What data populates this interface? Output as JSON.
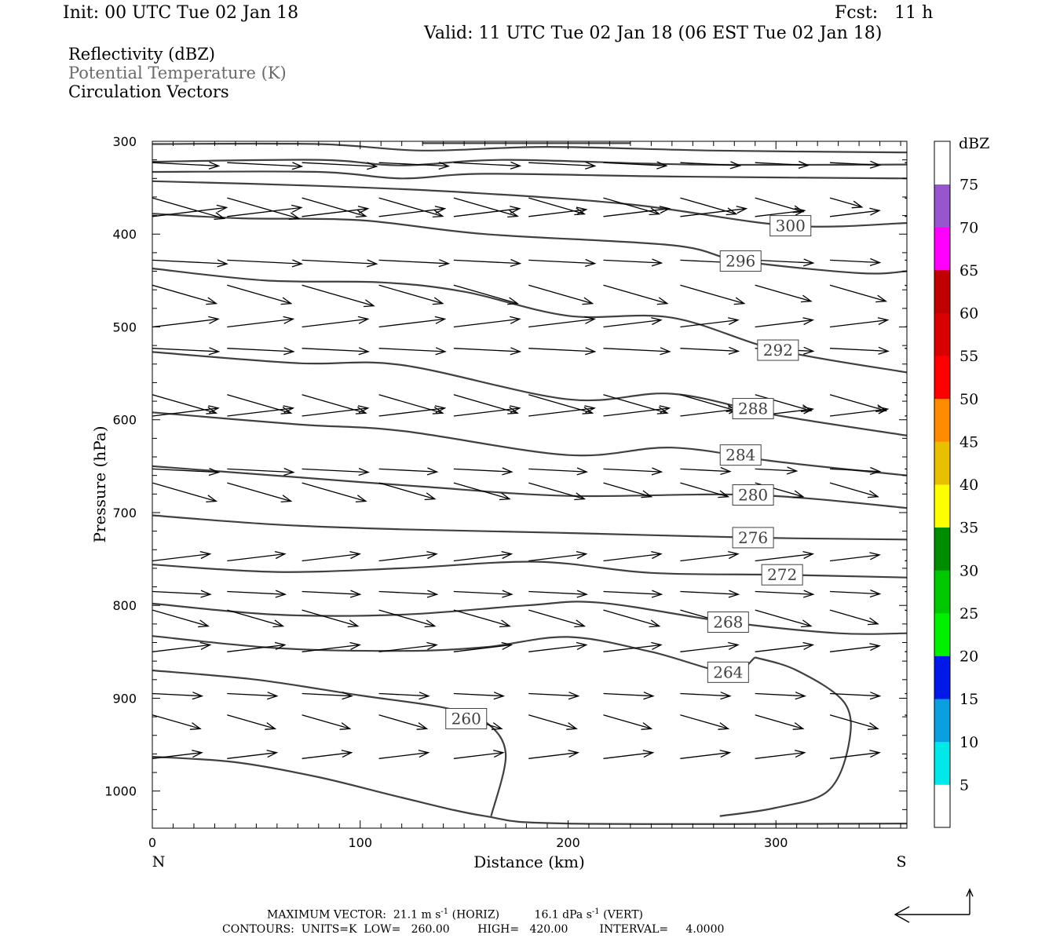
{
  "header": {
    "init": "Init: 00 UTC Tue 02 Jan 18",
    "fcst": "Fcst:   11 h",
    "valid": "Valid: 11 UTC Tue 02 Jan 18 (06 EST Tue 02 Jan 18)"
  },
  "fields": [
    "Reflectivity (dBZ)",
    "Potential Temperature (K)",
    "Circulation Vectors"
  ],
  "footer": {
    "max_vector_prefix": "MAXIMUM VECTOR:  21.1 m s",
    "horiz_suffix": " (HORIZ)",
    "vert_value": "16.1 dPa s",
    "vert_suffix": " (VERT)",
    "exponent": "-1",
    "contours": "CONTOURS:  UNITS=K  LOW=   260.00        HIGH=   420.00         INTERVAL=     4.0000"
  },
  "chart_data": {
    "type": "line",
    "title": "",
    "xlabel": "Distance (km)",
    "ylabel": "Pressure (hPa)",
    "xlim": [
      0,
      363
    ],
    "ylim": [
      1040,
      300
    ],
    "x_ticks": [
      0,
      100,
      200,
      300
    ],
    "y_ticks": [
      300,
      400,
      500,
      600,
      700,
      800,
      900,
      1000
    ],
    "x_end_labels": {
      "left": "N",
      "right": "S"
    },
    "colorbar": {
      "title": "dBZ",
      "labels": [
        "5",
        "10",
        "15",
        "20",
        "25",
        "30",
        "35",
        "40",
        "45",
        "50",
        "55",
        "60",
        "65",
        "70",
        "75"
      ],
      "colors": [
        "#ffffff",
        "#00e8e8",
        "#0aa0e0",
        "#0018e8",
        "#00f000",
        "#00c800",
        "#008c00",
        "#ffff00",
        "#e8c000",
        "#ff8c00",
        "#ff0000",
        "#d80000",
        "#c00000",
        "#ff00ff",
        "#9955cc",
        "#ffffff"
      ]
    },
    "series": [
      {
        "level": "260",
        "label_at": {
          "x": 151,
          "p": 922
        },
        "points": [
          [
            0,
            870
          ],
          [
            50,
            880
          ],
          [
            100,
            897
          ],
          [
            140,
            910
          ],
          [
            160,
            925
          ],
          [
            170,
            960
          ],
          [
            163,
            1027
          ]
        ]
      },
      {
        "level": "260",
        "points": [
          [
            273,
            1027
          ],
          [
            300,
            1018
          ],
          [
            325,
            1000
          ],
          [
            335,
            950
          ],
          [
            333,
            905
          ],
          [
            310,
            870
          ],
          [
            290,
            856
          ]
        ]
      },
      {
        "level": "264",
        "label_at": {
          "x": 277,
          "p": 872
        },
        "points": [
          [
            0,
            833
          ],
          [
            60,
            846
          ],
          [
            120,
            849
          ],
          [
            160,
            845
          ],
          [
            200,
            834
          ],
          [
            240,
            850
          ],
          [
            277,
            872
          ],
          [
            290,
            856
          ]
        ]
      },
      {
        "level": "268",
        "label_at": {
          "x": 277,
          "p": 818
        },
        "points": [
          [
            0,
            798
          ],
          [
            60,
            810
          ],
          [
            120,
            810
          ],
          [
            180,
            800
          ],
          [
            215,
            797
          ],
          [
            277,
            818
          ],
          [
            330,
            830
          ],
          [
            363,
            830
          ]
        ]
      },
      {
        "level": "272",
        "label_at": {
          "x": 303,
          "p": 767
        },
        "points": [
          [
            0,
            756
          ],
          [
            60,
            764
          ],
          [
            120,
            760
          ],
          [
            185,
            753
          ],
          [
            240,
            765
          ],
          [
            303,
            767
          ],
          [
            363,
            770
          ]
        ]
      },
      {
        "level": "276",
        "label_at": {
          "x": 289,
          "p": 727
        },
        "points": [
          [
            0,
            703
          ],
          [
            60,
            713
          ],
          [
            120,
            718
          ],
          [
            200,
            722
          ],
          [
            289,
            727
          ],
          [
            363,
            729
          ]
        ]
      },
      {
        "level": "280",
        "label_at": {
          "x": 289,
          "p": 681
        },
        "points": [
          [
            0,
            650
          ],
          [
            70,
            662
          ],
          [
            130,
            672
          ],
          [
            200,
            682
          ],
          [
            289,
            681
          ],
          [
            363,
            695
          ]
        ]
      },
      {
        "level": "284",
        "label_at": {
          "x": 283,
          "p": 638
        },
        "points": [
          [
            0,
            592
          ],
          [
            70,
            605
          ],
          [
            120,
            612
          ],
          [
            200,
            638
          ],
          [
            250,
            630
          ],
          [
            300,
            645
          ],
          [
            363,
            660
          ]
        ]
      },
      {
        "level": "288",
        "label_at": {
          "x": 289,
          "p": 588
        },
        "points": [
          [
            0,
            527
          ],
          [
            70,
            539
          ],
          [
            120,
            541
          ],
          [
            200,
            578
          ],
          [
            250,
            572
          ],
          [
            300,
            595
          ],
          [
            363,
            617
          ]
        ]
      },
      {
        "level": "292",
        "label_at": {
          "x": 301,
          "p": 525
        },
        "points": [
          [
            0,
            437
          ],
          [
            55,
            450
          ],
          [
            110,
            452
          ],
          [
            150,
            462
          ],
          [
            200,
            488
          ],
          [
            250,
            490
          ],
          [
            301,
            525
          ],
          [
            363,
            549
          ]
        ]
      },
      {
        "level": "296",
        "label_at": {
          "x": 283,
          "p": 429
        },
        "points": [
          [
            0,
            378
          ],
          [
            43,
            383
          ],
          [
            100,
            385
          ],
          [
            160,
            400
          ],
          [
            250,
            412
          ],
          [
            283,
            429
          ],
          [
            340,
            442
          ],
          [
            363,
            440
          ]
        ]
      },
      {
        "level": "300",
        "label_at": {
          "x": 307,
          "p": 391
        },
        "points": [
          [
            0,
            343
          ],
          [
            80,
            348
          ],
          [
            150,
            355
          ],
          [
            230,
            368
          ],
          [
            307,
            391
          ],
          [
            363,
            388
          ]
        ]
      },
      {
        "level": "",
        "points": [
          [
            0,
            333
          ],
          [
            80,
            333
          ],
          [
            120,
            340
          ],
          [
            160,
            335
          ],
          [
            250,
            338
          ],
          [
            363,
            340
          ]
        ]
      },
      {
        "level": "",
        "points": [
          [
            0,
            322
          ],
          [
            80,
            320
          ],
          [
            120,
            326
          ],
          [
            170,
            320
          ],
          [
            260,
            325
          ],
          [
            363,
            325
          ]
        ]
      },
      {
        "level": "",
        "points": [
          [
            0,
            303
          ],
          [
            80,
            303
          ],
          [
            130,
            310
          ],
          [
            190,
            306
          ],
          [
            270,
            310
          ],
          [
            363,
            312
          ]
        ]
      },
      {
        "level": "",
        "points": [
          [
            130,
            302
          ],
          [
            230,
            302
          ]
        ]
      },
      {
        "level": "",
        "points": [
          [
            0,
            963
          ],
          [
            40,
            969
          ],
          [
            80,
            985
          ],
          [
            120,
            1007
          ],
          [
            160,
            1027
          ],
          [
            200,
            1035
          ],
          [
            363,
            1035
          ]
        ]
      }
    ],
    "vectors": {
      "x": [
        0,
        36,
        72,
        109,
        145,
        181,
        217,
        254,
        290,
        326,
        362
      ],
      "p": [
        323,
        361,
        381,
        428,
        455,
        500,
        523,
        573,
        596,
        653,
        668,
        752,
        785,
        805,
        850,
        895,
        918,
        965
      ],
      "u": [
        [
          0.4,
          0.45,
          0.45,
          0.42,
          0.4,
          0.4,
          0.38,
          0.36,
          0.32,
          0.3,
          0.3
        ],
        [
          0.45,
          0.45,
          0.4,
          0.4,
          0.4,
          0.35,
          0.35,
          0.35,
          0.3,
          0.2,
          0.2
        ],
        [
          0.45,
          0.45,
          0.4,
          0.4,
          0.4,
          0.35,
          0.4,
          0.4,
          0.3,
          0.3,
          0.25
        ],
        [
          0.45,
          0.45,
          0.45,
          0.42,
          0.4,
          0.4,
          0.35,
          0.35,
          0.35,
          0.3,
          0.3
        ],
        [
          0.4,
          0.4,
          0.45,
          0.4,
          0.4,
          0.4,
          0.4,
          0.4,
          0.35,
          0.35,
          0.3
        ],
        [
          0.4,
          0.4,
          0.4,
          0.4,
          0.4,
          0.4,
          0.35,
          0.35,
          0.35,
          0.35,
          0.3
        ],
        [
          0.4,
          0.4,
          0.4,
          0.4,
          0.4,
          0.4,
          0.4,
          0.35,
          0.35,
          0.35,
          0.3
        ],
        [
          0.4,
          0.4,
          0.4,
          0.4,
          0.4,
          0.4,
          0.4,
          0.35,
          0.35,
          0.35,
          0.3
        ],
        [
          0.4,
          0.4,
          0.4,
          0.4,
          0.4,
          0.4,
          0.4,
          0.35,
          0.35,
          0.35,
          0.3
        ],
        [
          0.4,
          0.4,
          0.4,
          0.35,
          0.35,
          0.35,
          0.35,
          0.3,
          0.25,
          0.3,
          0.3
        ],
        [
          0.4,
          0.4,
          0.4,
          0.35,
          0.35,
          0.35,
          0.3,
          0.3,
          0.3,
          0.3,
          0.3
        ],
        [
          0.35,
          0.35,
          0.35,
          0.35,
          0.35,
          0.35,
          0.35,
          0.35,
          0.35,
          0.3,
          0.3
        ],
        [
          0.35,
          0.35,
          0.35,
          0.35,
          0.35,
          0.35,
          0.35,
          0.35,
          0.35,
          0.3,
          0.3
        ],
        [
          0.35,
          0.35,
          0.35,
          0.35,
          0.35,
          0.35,
          0.35,
          0.35,
          0.35,
          0.3,
          0.3
        ],
        [
          0.35,
          0.35,
          0.35,
          0.35,
          0.35,
          0.35,
          0.35,
          0.35,
          0.35,
          0.3,
          0.3
        ],
        [
          0.3,
          0.3,
          0.3,
          0.3,
          0.3,
          0.3,
          0.3,
          0.3,
          0.3,
          0.3,
          0.3
        ],
        [
          0.3,
          0.3,
          0.3,
          0.3,
          0.3,
          0.3,
          0.3,
          0.3,
          0.3,
          0.3,
          0.3
        ],
        [
          0.3,
          0.3,
          0.3,
          0.3,
          0.3,
          0.3,
          0.3,
          0.3,
          0.3,
          0.3,
          0.3
        ]
      ]
    }
  }
}
